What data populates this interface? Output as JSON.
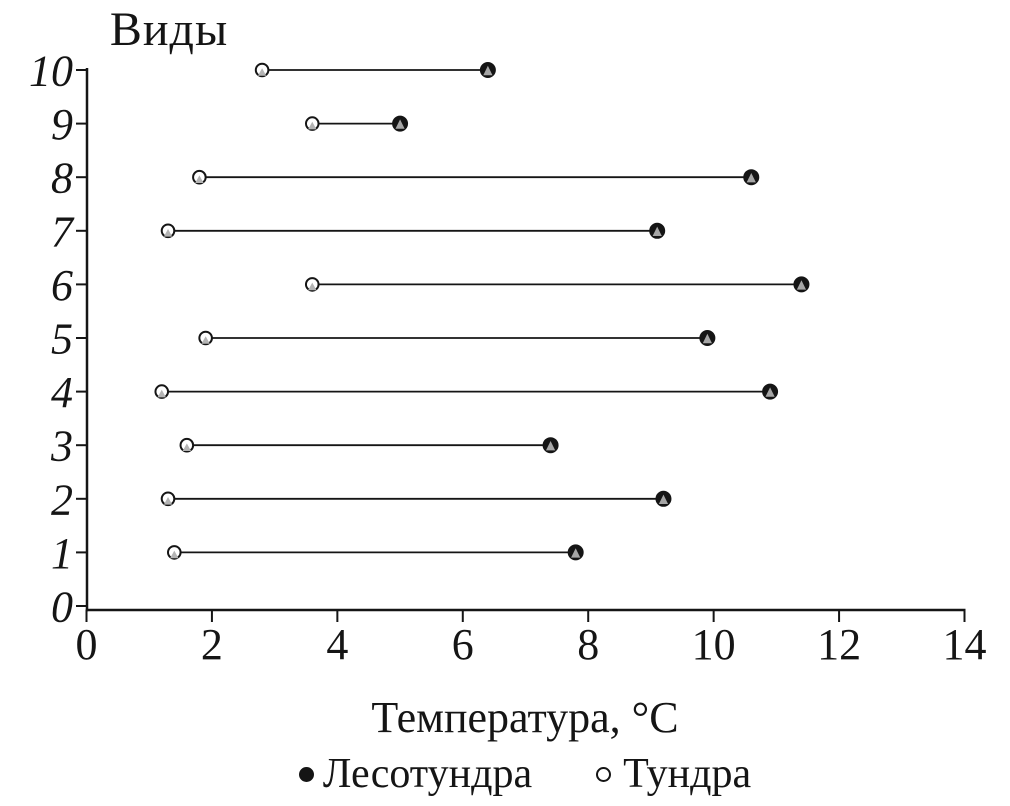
{
  "figure": {
    "y_axis_title": "Виды",
    "x_axis_title": "Температура, °C"
  },
  "legend": {
    "position": "bottom",
    "items": [
      {
        "label": "Лесотундра",
        "marker": "filled-circle"
      },
      {
        "label": "Тундра",
        "marker": "open-circle"
      }
    ]
  },
  "colors": {
    "ink": "#151515",
    "open_marker_fill": "#ffffff",
    "triangle_overlay_on_open": "#b4b4b4",
    "triangle_overlay_on_filled": "#a6a6a6",
    "background": "#ffffff"
  },
  "chart_data": {
    "type": "scatter",
    "subtype": "dumbbell-range",
    "orientation": "horizontal",
    "title": "Виды",
    "xlabel": "Температура, °C",
    "ylabel": "Виды",
    "xlim": [
      0,
      14
    ],
    "ylim": [
      0,
      10
    ],
    "x_ticks": [
      0,
      2,
      4,
      6,
      8,
      10,
      12,
      14
    ],
    "y_ticks": [
      0,
      1,
      2,
      3,
      4,
      5,
      6,
      7,
      8,
      9,
      10
    ],
    "grid": false,
    "legend_position": "bottom",
    "categories": [
      1,
      2,
      3,
      4,
      5,
      6,
      7,
      8,
      9,
      10
    ],
    "series": [
      {
        "name": "Тундра",
        "marker": "open-circle",
        "values": [
          1.4,
          1.3,
          1.6,
          1.2,
          1.9,
          3.6,
          1.3,
          1.8,
          3.6,
          2.8
        ]
      },
      {
        "name": "Лесотундра",
        "marker": "filled-circle",
        "values": [
          7.8,
          9.2,
          7.4,
          10.9,
          9.9,
          11.4,
          9.1,
          10.6,
          5.0,
          6.4
        ]
      }
    ],
    "connector": "line-between-series-points"
  }
}
